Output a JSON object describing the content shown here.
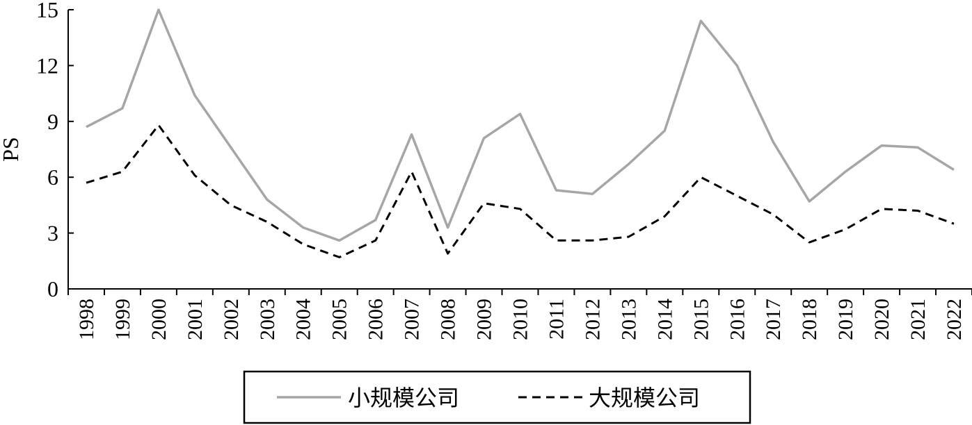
{
  "chart_data": {
    "type": "line",
    "title": "",
    "xlabel": "",
    "ylabel": "PS",
    "ylim": [
      0,
      15
    ],
    "yticks": [
      0,
      3,
      6,
      9,
      12,
      15
    ],
    "categories": [
      "1998",
      "1999",
      "2000",
      "2001",
      "2002",
      "2003",
      "2004",
      "2005",
      "2006",
      "2007",
      "2008",
      "2009",
      "2010",
      "2011",
      "2012",
      "2013",
      "2014",
      "2015",
      "2016",
      "2017",
      "2018",
      "2019",
      "2020",
      "2021",
      "2022"
    ],
    "series": [
      {
        "name": "小规模公司",
        "color": "#a6a6a6",
        "style": "solid",
        "values": [
          8.7,
          9.7,
          15.0,
          10.4,
          7.6,
          4.8,
          3.3,
          2.6,
          3.7,
          8.3,
          3.3,
          8.1,
          9.4,
          5.3,
          5.1,
          6.7,
          8.5,
          14.4,
          12.0,
          7.9,
          4.7,
          6.3,
          7.7,
          7.6,
          6.4
        ]
      },
      {
        "name": "大规模公司",
        "color": "#000000",
        "style": "dashed",
        "values": [
          5.7,
          6.3,
          8.8,
          6.1,
          4.5,
          3.6,
          2.4,
          1.7,
          2.6,
          6.3,
          1.9,
          4.6,
          4.3,
          2.6,
          2.6,
          2.8,
          3.9,
          6.0,
          5.0,
          4.0,
          2.5,
          3.2,
          4.3,
          4.2,
          3.5
        ]
      }
    ],
    "grid": false,
    "legend_position": "bottom"
  }
}
